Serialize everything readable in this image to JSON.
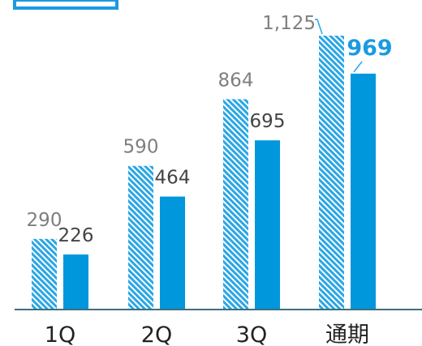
{
  "chart_data": {
    "type": "bar",
    "categories": [
      "1Q",
      "2Q",
      "3Q",
      "通期"
    ],
    "series": [
      {
        "values": [
          290,
          590,
          864,
          1125
        ],
        "value_labels": [
          "290",
          "590",
          "864",
          "1,125"
        ],
        "style": "hatched"
      },
      {
        "values": [
          226,
          464,
          695,
          969
        ],
        "value_labels": [
          "226",
          "464",
          "695",
          "969"
        ],
        "style": "solid"
      }
    ],
    "ylim": [
      0,
      1250
    ],
    "grid": false,
    "highlight": {
      "series": 1,
      "category": 3
    },
    "colors": {
      "hatch": "#29a6e6",
      "solid": "#0097dc",
      "axis": "#3d6f80",
      "highlight_text": "#1a9be0",
      "header_box": "#1a9be0"
    }
  }
}
